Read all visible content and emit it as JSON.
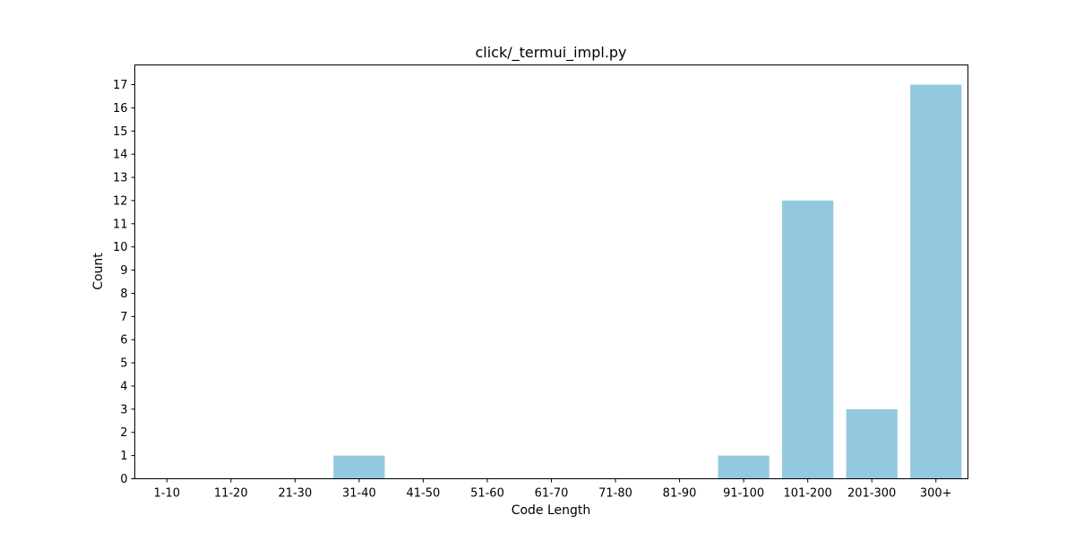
{
  "chart_data": {
    "type": "bar",
    "title": "click/_termui_impl.py",
    "xlabel": "Code Length",
    "ylabel": "Count",
    "categories": [
      "1-10",
      "11-20",
      "21-30",
      "31-40",
      "41-50",
      "51-60",
      "61-70",
      "71-80",
      "81-90",
      "91-100",
      "101-200",
      "201-300",
      "300+"
    ],
    "values": [
      0,
      0,
      0,
      1,
      0,
      0,
      0,
      0,
      0,
      1,
      12,
      3,
      17
    ],
    "ylim": [
      0,
      17.85
    ],
    "yticks": [
      0,
      1,
      2,
      3,
      4,
      5,
      6,
      7,
      8,
      9,
      10,
      11,
      12,
      13,
      14,
      15,
      16,
      17
    ],
    "bar_color": "#92c9de",
    "grid": false,
    "legend": "none"
  }
}
